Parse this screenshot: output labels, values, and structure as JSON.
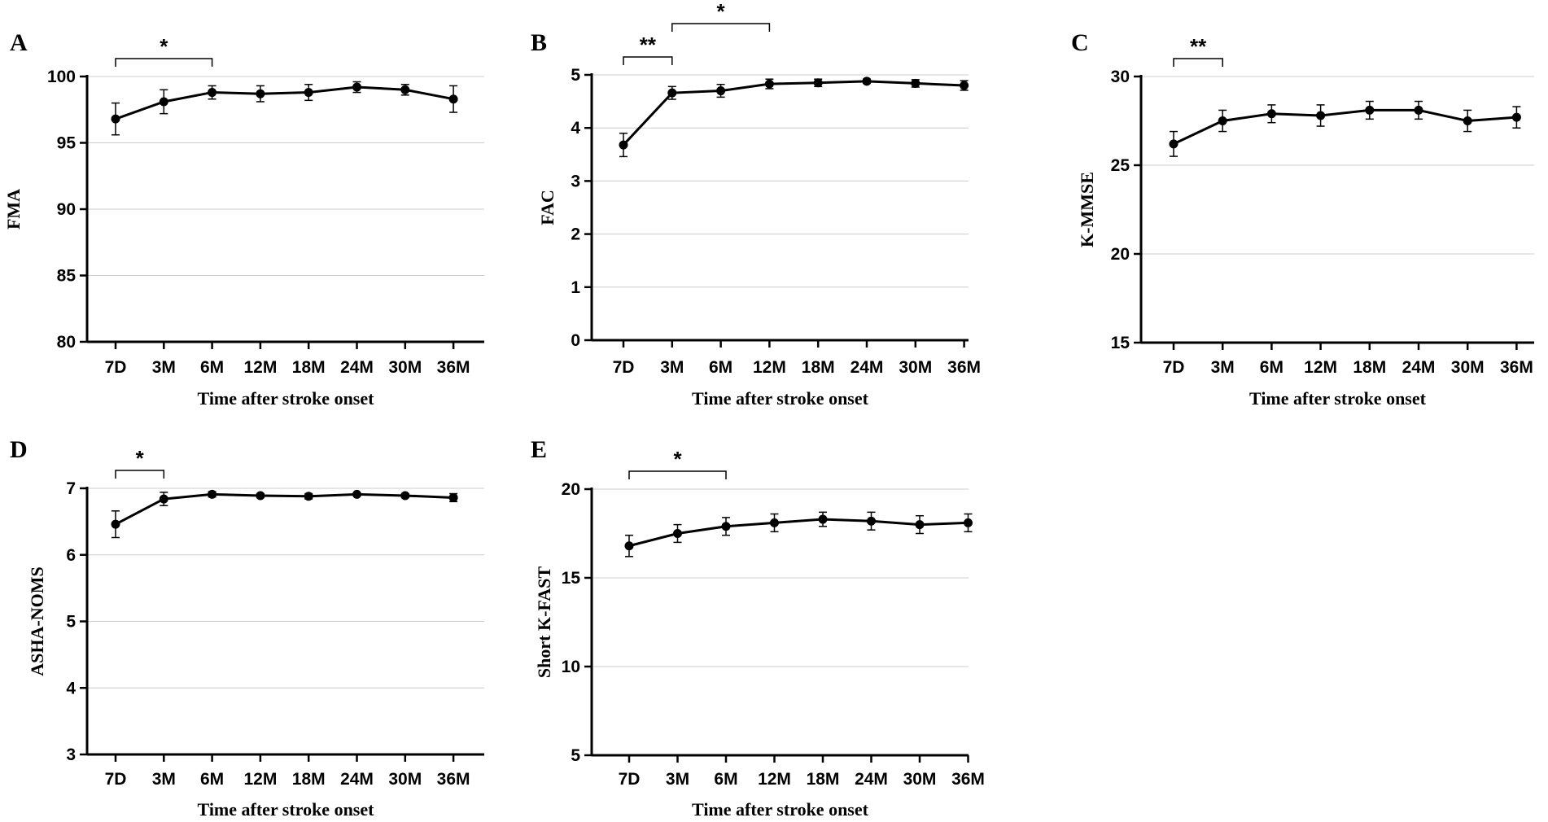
{
  "chart_data": [
    {
      "panel": "A",
      "type": "line",
      "categories": [
        "7D",
        "3M",
        "6M",
        "12M",
        "18M",
        "24M",
        "30M",
        "36M"
      ],
      "values": [
        96.8,
        98.1,
        98.8,
        98.7,
        98.8,
        99.2,
        99.0,
        98.3
      ],
      "errors": [
        1.2,
        0.9,
        0.5,
        0.6,
        0.6,
        0.4,
        0.4,
        1.0
      ],
      "ylabel": "FMA",
      "xlabel": "Time after stroke onset",
      "ylim": [
        80,
        100
      ],
      "yticks": [
        80,
        85,
        90,
        95,
        100
      ],
      "grid": true,
      "significance": [
        {
          "from": 0,
          "to": 2,
          "label": "*"
        }
      ]
    },
    {
      "panel": "B",
      "type": "line",
      "categories": [
        "7D",
        "3M",
        "6M",
        "12M",
        "18M",
        "24M",
        "30M",
        "36M"
      ],
      "values": [
        3.68,
        4.66,
        4.7,
        4.83,
        4.85,
        4.88,
        4.84,
        4.8
      ],
      "errors": [
        0.22,
        0.12,
        0.12,
        0.09,
        0.07,
        0.04,
        0.07,
        0.09
      ],
      "ylabel": "FAC",
      "xlabel": "Time after stroke onset",
      "ylim": [
        0,
        5
      ],
      "yticks": [
        0,
        1,
        2,
        3,
        4,
        5
      ],
      "grid": true,
      "significance": [
        {
          "from": 0,
          "to": 1,
          "label": "**"
        },
        {
          "from": 1,
          "to": 3,
          "label": "*"
        }
      ]
    },
    {
      "panel": "C",
      "type": "line",
      "categories": [
        "7D",
        "3M",
        "6M",
        "12M",
        "18M",
        "24M",
        "30M",
        "36M"
      ],
      "values": [
        26.2,
        27.5,
        27.9,
        27.8,
        28.1,
        28.1,
        27.5,
        27.7
      ],
      "errors": [
        0.7,
        0.6,
        0.5,
        0.6,
        0.5,
        0.5,
        0.6,
        0.6
      ],
      "ylabel": "K-MMSE",
      "xlabel": "Time after stroke onset",
      "ylim": [
        15,
        30
      ],
      "yticks": [
        15,
        20,
        25,
        30
      ],
      "grid": true,
      "significance": [
        {
          "from": 0,
          "to": 1,
          "label": "**"
        }
      ]
    },
    {
      "panel": "D",
      "type": "line",
      "categories": [
        "7D",
        "3M",
        "6M",
        "12M",
        "18M",
        "24M",
        "30M",
        "36M"
      ],
      "values": [
        6.46,
        6.84,
        6.91,
        6.89,
        6.88,
        6.91,
        6.89,
        6.86
      ],
      "errors": [
        0.2,
        0.1,
        0.04,
        0.03,
        0.04,
        0.02,
        0.03,
        0.06
      ],
      "ylabel": "ASHA-NOMS",
      "xlabel": "Time after stroke onset",
      "ylim": [
        3,
        7
      ],
      "yticks": [
        3,
        4,
        5,
        6,
        7
      ],
      "grid": true,
      "significance": [
        {
          "from": 0,
          "to": 1,
          "label": "*"
        }
      ]
    },
    {
      "panel": "E",
      "type": "line",
      "categories": [
        "7D",
        "3M",
        "6M",
        "12M",
        "18M",
        "24M",
        "30M",
        "36M"
      ],
      "values": [
        16.8,
        17.5,
        17.9,
        18.1,
        18.3,
        18.2,
        18.0,
        18.1
      ],
      "errors": [
        0.6,
        0.5,
        0.5,
        0.5,
        0.4,
        0.5,
        0.5,
        0.5
      ],
      "ylabel": "Short  K-FAST",
      "xlabel": "Time after stroke onset",
      "ylim": [
        5,
        20
      ],
      "yticks": [
        5,
        10,
        15,
        20
      ],
      "grid": true,
      "significance": [
        {
          "from": 0,
          "to": 2,
          "label": "*"
        }
      ]
    }
  ]
}
